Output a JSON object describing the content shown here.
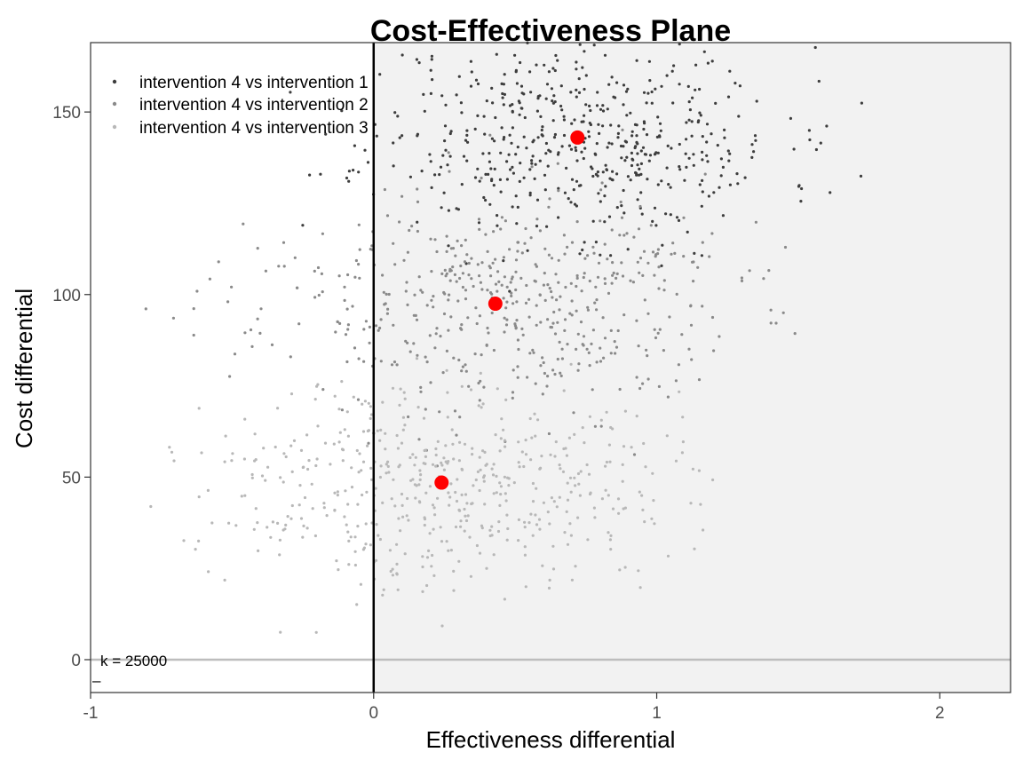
{
  "chart_data": {
    "type": "scatter",
    "title": "Cost-Effectiveness Plane",
    "xlabel": "Effectiveness differential",
    "ylabel": "Cost differential",
    "xlim": [
      -1.0,
      2.25
    ],
    "ylim": [
      -9,
      169
    ],
    "x_ticks": [
      -1,
      0,
      1,
      2
    ],
    "x_tick_labels": [
      "-1",
      "0",
      "1",
      "2"
    ],
    "y_ticks": [
      0,
      50,
      100,
      150
    ],
    "y_tick_labels": [
      "0",
      "50",
      "100",
      "150"
    ],
    "grid": false,
    "legend_position": "top-left",
    "annotation": "k = 25000",
    "annotation_marker": "–",
    "reference_lines": {
      "vertical_x": 0,
      "horizontal_y": 0
    },
    "acceptability_region_color": "#f2f2f2",
    "mean_marker_color": "#ff0000",
    "series": [
      {
        "name": "intervention 4 vs intervention 1",
        "color": "#3d3d3d",
        "mean": {
          "x": 0.72,
          "y": 143
        },
        "spread": {
          "sx": 0.36,
          "sy": 14,
          "n": 520,
          "seed": 11
        }
      },
      {
        "name": "intervention 4 vs intervention 2",
        "color": "#8a8a8a",
        "mean": {
          "x": 0.43,
          "y": 97.5
        },
        "spread": {
          "sx": 0.42,
          "sy": 15,
          "n": 520,
          "seed": 23
        }
      },
      {
        "name": "intervention 4 vs intervention 3",
        "color": "#b8b8b8",
        "mean": {
          "x": 0.24,
          "y": 48.5
        },
        "spread": {
          "sx": 0.4,
          "sy": 14,
          "n": 520,
          "seed": 37
        }
      }
    ]
  }
}
